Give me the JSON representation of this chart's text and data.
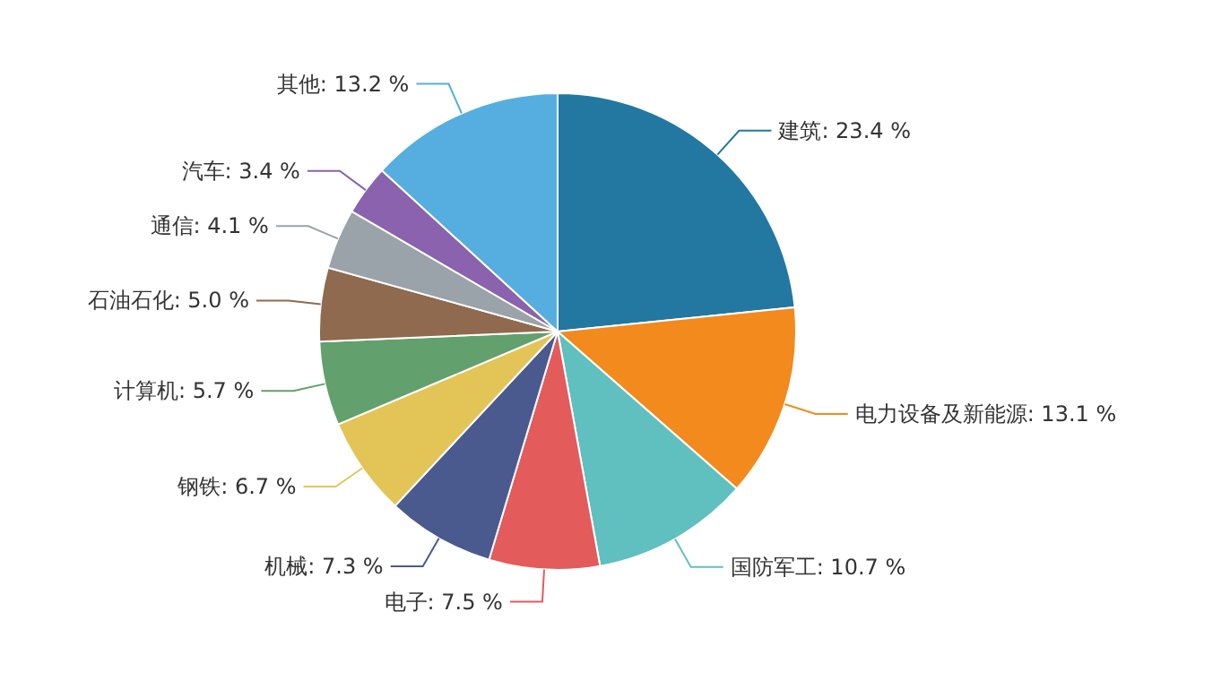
{
  "chart_data": {
    "type": "pie",
    "categories": [
      "建筑",
      "电力设备及新能源",
      "国防军工",
      "电子",
      "机械",
      "钢铁",
      "计算机",
      "石油石化",
      "通信",
      "汽车",
      "其他"
    ],
    "values": [
      23.4,
      13.1,
      10.7,
      7.5,
      7.3,
      6.7,
      5.7,
      5.0,
      4.1,
      3.4,
      13.2
    ],
    "value_labels": [
      "23.4 %",
      "13.1 %",
      "10.7 %",
      "7.5 %",
      "7.3 %",
      "6.7 %",
      "5.7 %",
      "5.0 %",
      "4.1 %",
      "3.4 %",
      "13.2 %"
    ],
    "colors": [
      "#2278a0",
      "#f28a1d",
      "#5fc0bf",
      "#e35b5b",
      "#4a5a8f",
      "#e3c557",
      "#62a06e",
      "#8f6a4e",
      "#9aa2aa",
      "#8a62ad",
      "#55aedf"
    ]
  }
}
